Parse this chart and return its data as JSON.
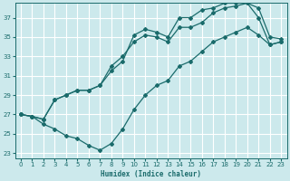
{
  "xlabel": "Humidex (Indice chaleur)",
  "background_color": "#cce9ec",
  "grid_color": "#ffffff",
  "line_color": "#1a6b6b",
  "xlim": [
    -0.5,
    23.5
  ],
  "ylim": [
    22.5,
    38.5
  ],
  "xticks": [
    0,
    1,
    2,
    3,
    4,
    5,
    6,
    7,
    8,
    9,
    10,
    11,
    12,
    13,
    14,
    15,
    16,
    17,
    18,
    19,
    20,
    21,
    22,
    23
  ],
  "yticks": [
    23,
    25,
    27,
    29,
    31,
    33,
    35,
    37
  ],
  "curve1_x": [
    0,
    1,
    2,
    3,
    4,
    5,
    6,
    7,
    8,
    9,
    10,
    11,
    12,
    13,
    14,
    15,
    16,
    17,
    18,
    19,
    20,
    21,
    22,
    23
  ],
  "curve1_y": [
    27.0,
    26.8,
    26.5,
    28.5,
    29.0,
    29.5,
    29.5,
    30.0,
    32.0,
    33.0,
    34.5,
    35.2,
    35.0,
    34.5,
    36.0,
    36.0,
    36.5,
    37.5,
    38.0,
    38.2,
    38.5,
    37.0,
    34.2,
    34.5
  ],
  "curve2_x": [
    0,
    1,
    2,
    3,
    4,
    5,
    6,
    7,
    8,
    9,
    10,
    11,
    12,
    13,
    14,
    15,
    16,
    17,
    18,
    19,
    20,
    21,
    22,
    23
  ],
  "curve2_y": [
    27.0,
    26.8,
    26.5,
    28.5,
    29.0,
    29.5,
    29.5,
    30.0,
    31.5,
    32.5,
    35.2,
    35.8,
    35.5,
    35.0,
    37.0,
    37.0,
    37.8,
    38.0,
    38.5,
    38.5,
    38.5,
    38.0,
    35.0,
    34.8
  ],
  "curve3_x": [
    0,
    1,
    2,
    3,
    4,
    5,
    6,
    7,
    8,
    9,
    10,
    11,
    12,
    13,
    14,
    15,
    16,
    17,
    18,
    19,
    20,
    21,
    22,
    23
  ],
  "curve3_y": [
    27.0,
    26.8,
    26.0,
    25.5,
    24.8,
    24.5,
    23.8,
    23.3,
    24.0,
    25.5,
    27.5,
    29.0,
    30.0,
    30.5,
    32.0,
    32.5,
    33.5,
    34.5,
    35.0,
    35.5,
    36.0,
    35.2,
    34.2,
    34.5
  ]
}
